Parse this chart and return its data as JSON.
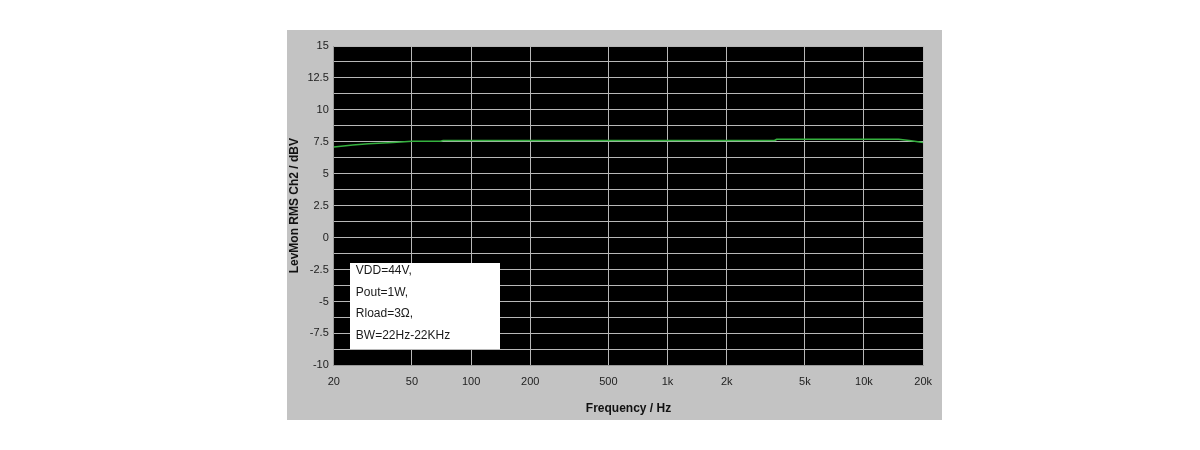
{
  "chart_data": {
    "type": "line",
    "xlabel": "Frequency / Hz",
    "ylabel": "LevMon RMS Ch2 / dBV",
    "x": [
      20,
      25,
      30,
      40,
      50,
      70,
      72,
      3500,
      3600,
      15000,
      17000,
      20000
    ],
    "values": [
      7.1,
      7.25,
      7.35,
      7.45,
      7.55,
      7.55,
      7.6,
      7.6,
      7.7,
      7.7,
      7.6,
      7.45
    ],
    "color": "#35b13f",
    "log": "x",
    "xlim": [
      20,
      20000
    ],
    "xticks": [
      20,
      50,
      100,
      200,
      500,
      {
        "value": 1000,
        "label": "1k"
      },
      {
        "value": 2000,
        "label": "2k"
      },
      {
        "value": 5000,
        "label": "5k"
      },
      {
        "value": 10000,
        "label": "10k"
      },
      {
        "value": 20000,
        "label": "20k"
      }
    ],
    "ylim": [
      -10,
      15
    ],
    "yticks": [
      -10,
      {
        "value": -8.75,
        "label": null
      },
      -7.5,
      {
        "value": -6.25,
        "label": null
      },
      -5,
      {
        "value": -3.75,
        "label": null
      },
      -2.5,
      {
        "value": -1.25,
        "label": null
      },
      0,
      {
        "value": 1.25,
        "label": null
      },
      2.5,
      {
        "value": 3.75,
        "label": null
      },
      5,
      {
        "value": 6.25,
        "label": null
      },
      7.5,
      {
        "value": 8.75,
        "label": null
      },
      10,
      {
        "value": 11.25,
        "label": null
      },
      12.5,
      {
        "value": 13.75,
        "label": null
      },
      15
    ],
    "grid": true,
    "annotations": [
      "VDD=44V,",
      "Pout=1W,",
      "Rload=3Ω,",
      "BW=22Hz-22KHz"
    ]
  }
}
